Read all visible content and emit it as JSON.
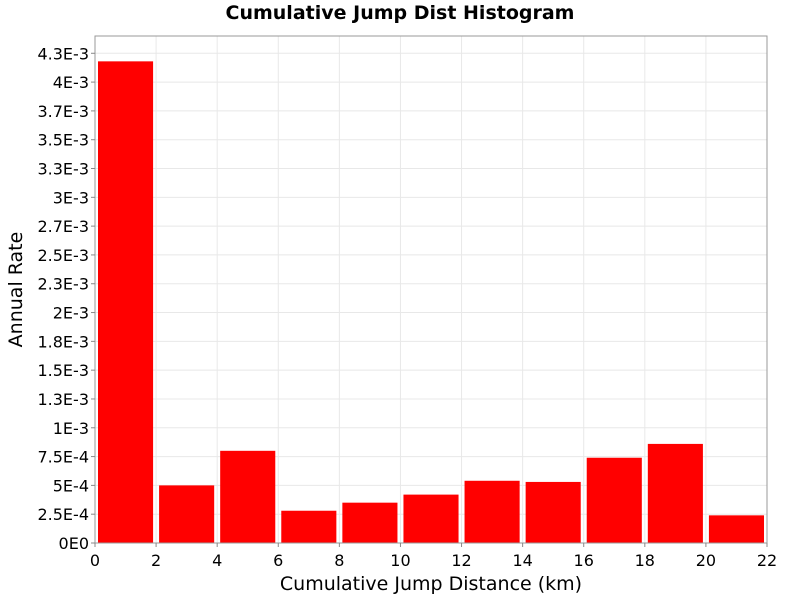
{
  "chart_data": {
    "type": "bar",
    "title": "Cumulative Jump Dist Histogram",
    "xlabel": "Cumulative Jump Distance (km)",
    "ylabel": "Annual Rate",
    "xlim": [
      0,
      22
    ],
    "ylim": [
      0,
      0.0044
    ],
    "x_ticks": [
      0,
      2,
      4,
      6,
      8,
      10,
      12,
      14,
      16,
      18,
      20,
      22
    ],
    "x_tick_labels": [
      "0",
      "2",
      "4",
      "6",
      "8",
      "10",
      "12",
      "14",
      "16",
      "18",
      "20",
      "22"
    ],
    "y_ticks": [
      0,
      0.00025,
      0.0005,
      0.00075,
      0.001,
      0.00125,
      0.0015,
      0.00175,
      0.002,
      0.00225,
      0.0025,
      0.00275,
      0.003,
      0.00325,
      0.0035,
      0.00375,
      0.004,
      0.00425
    ],
    "y_tick_labels": [
      "0E0",
      "2.5E-4",
      "5E-4",
      "7.5E-4",
      "1E-3",
      "1.3E-3",
      "1.5E-3",
      "1.8E-3",
      "2E-3",
      "2.3E-3",
      "2.5E-3",
      "2.7E-3",
      "3E-3",
      "3.3E-3",
      "3.5E-3",
      "3.7E-3",
      "4E-3",
      "4.3E-3"
    ],
    "bins": [
      {
        "x0": 0,
        "x1": 2,
        "value": 0.00418
      },
      {
        "x0": 2,
        "x1": 4,
        "value": 0.0005
      },
      {
        "x0": 4,
        "x1": 6,
        "value": 0.0008
      },
      {
        "x0": 6,
        "x1": 8,
        "value": 0.00028
      },
      {
        "x0": 8,
        "x1": 10,
        "value": 0.00035
      },
      {
        "x0": 10,
        "x1": 12,
        "value": 0.00042
      },
      {
        "x0": 12,
        "x1": 14,
        "value": 0.00054
      },
      {
        "x0": 14,
        "x1": 16,
        "value": 0.00053
      },
      {
        "x0": 16,
        "x1": 18,
        "value": 0.00074
      },
      {
        "x0": 18,
        "x1": 20,
        "value": 0.00086
      },
      {
        "x0": 20,
        "x1": 22,
        "value": 0.00024
      }
    ],
    "bar_color": "#ff0000",
    "grid": true,
    "legend": "none"
  }
}
